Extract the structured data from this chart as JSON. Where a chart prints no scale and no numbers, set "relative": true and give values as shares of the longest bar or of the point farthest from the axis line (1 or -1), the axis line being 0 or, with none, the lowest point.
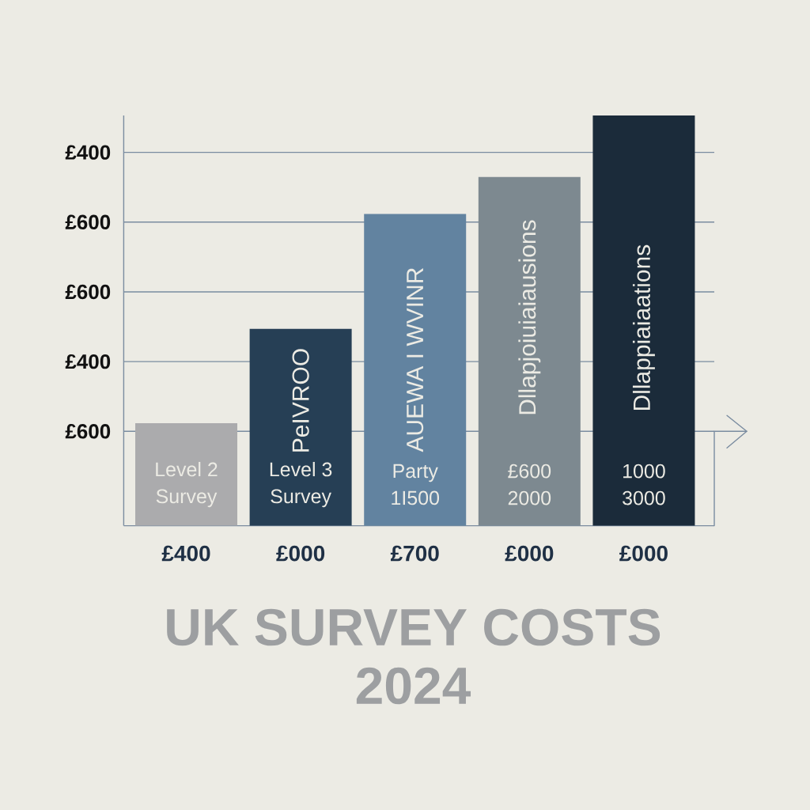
{
  "chart_data": {
    "type": "bar",
    "title": "UK SURVEY COSTS 2024",
    "categories": [
      "£400",
      "£000",
      "£700",
      "£000",
      "£000"
    ],
    "values": [
      0.25,
      0.48,
      0.76,
      0.85,
      1
    ],
    "colors": [
      "#ababad",
      "#263f55",
      "#6283a0",
      "#7d8990",
      "#1b2b3a"
    ],
    "relative": true,
    "ref_lines": [
      {
        "axis": "y",
        "value": 0.23,
        "color": "#7a8ca0"
      },
      {
        "axis": "y",
        "value": 0.4,
        "color": "#7a8ca0"
      },
      {
        "axis": "y",
        "value": 0.57,
        "color": "#7a8ca0"
      },
      {
        "axis": "y",
        "value": 0.74,
        "color": "#7a8ca0"
      },
      {
        "axis": "y",
        "value": 0.91,
        "color": "#7a8ca0"
      }
    ],
    "annotations": [
      "£400",
      "£600",
      "£600",
      "£400",
      "£600",
      "Level 2 Survey",
      "PeIVROO",
      "Level 3 Survey",
      "AUEWA I WVINR",
      "Party 1I500",
      "Dllapjoiuiaiausions",
      "£600 2000",
      "Dllappiaiaations",
      "1000 3000"
    ]
  }
}
